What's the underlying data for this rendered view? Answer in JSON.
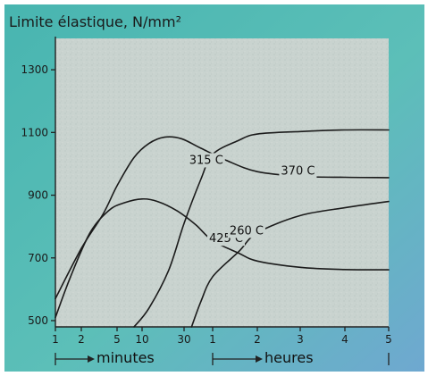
{
  "chart_data": {
    "type": "line",
    "title": "",
    "ylabel": "Limite élastique, N/mm²",
    "ylim": [
      480,
      1400
    ],
    "yticks": [
      {
        "value": 500,
        "label": "500"
      },
      {
        "value": 700,
        "label": "700"
      },
      {
        "value": 900,
        "label": "900"
      },
      {
        "value": 1100,
        "label": "1100"
      },
      {
        "value": 1300,
        "label": "1300"
      }
    ],
    "x_scale": "log",
    "x_groups": [
      {
        "unit": "minutes",
        "ticks": [
          "1",
          "2",
          "5",
          "10",
          "30"
        ]
      },
      {
        "unit": "heures",
        "ticks": [
          "1",
          "2",
          "3",
          "4",
          "5"
        ]
      }
    ],
    "xticks": [
      {
        "minutes": 1,
        "label": "1"
      },
      {
        "minutes": 2,
        "label": "2"
      },
      {
        "minutes": 5,
        "label": "5"
      },
      {
        "minutes": 10,
        "label": "10"
      },
      {
        "minutes": 30,
        "label": "30"
      },
      {
        "minutes": 60,
        "label": "1"
      },
      {
        "minutes": 120,
        "label": "2"
      },
      {
        "minutes": 180,
        "label": "3"
      },
      {
        "minutes": 240,
        "label": "4"
      },
      {
        "minutes": 300,
        "label": "5"
      }
    ],
    "series": [
      {
        "name": "260 C",
        "points": [
          [
            36,
            480
          ],
          [
            45,
            560
          ],
          [
            60,
            640
          ],
          [
            90,
            720
          ],
          [
            120,
            780
          ],
          [
            180,
            835
          ],
          [
            240,
            860
          ],
          [
            300,
            880
          ]
        ]
      },
      {
        "name": "315 C",
        "points": [
          [
            8,
            480
          ],
          [
            12,
            540
          ],
          [
            20,
            660
          ],
          [
            30,
            810
          ],
          [
            45,
            950
          ],
          [
            60,
            1030
          ],
          [
            90,
            1075
          ],
          [
            120,
            1095
          ],
          [
            180,
            1103
          ],
          [
            240,
            1108
          ],
          [
            300,
            1108
          ]
        ]
      },
      {
        "name": "370 C",
        "points": [
          [
            1,
            570
          ],
          [
            2,
            730
          ],
          [
            3.5,
            840
          ],
          [
            5,
            930
          ],
          [
            8,
            1020
          ],
          [
            12,
            1065
          ],
          [
            18,
            1085
          ],
          [
            28,
            1080
          ],
          [
            45,
            1050
          ],
          [
            75,
            1010
          ],
          [
            120,
            975
          ],
          [
            180,
            960
          ],
          [
            240,
            957
          ],
          [
            300,
            956
          ]
        ]
      },
      {
        "name": "425 C",
        "points": [
          [
            1,
            510
          ],
          [
            1.5,
            640
          ],
          [
            2.5,
            780
          ],
          [
            4,
            850
          ],
          [
            6,
            875
          ],
          [
            10,
            888
          ],
          [
            15,
            880
          ],
          [
            25,
            850
          ],
          [
            40,
            805
          ],
          [
            60,
            755
          ],
          [
            90,
            715
          ],
          [
            120,
            690
          ],
          [
            180,
            670
          ],
          [
            240,
            663
          ],
          [
            300,
            662
          ]
        ]
      }
    ],
    "curve_labels": [
      {
        "series": "370 C",
        "text": "370 C",
        "at": [
          150,
          965
        ]
      },
      {
        "series": "315 C",
        "text": "315 C",
        "at": [
          34,
          1000
        ]
      },
      {
        "series": "425 C",
        "text": "425 C",
        "at": [
          55,
          750
        ]
      },
      {
        "series": "260 C",
        "text": "260 C",
        "at": [
          78,
          775
        ]
      }
    ]
  }
}
